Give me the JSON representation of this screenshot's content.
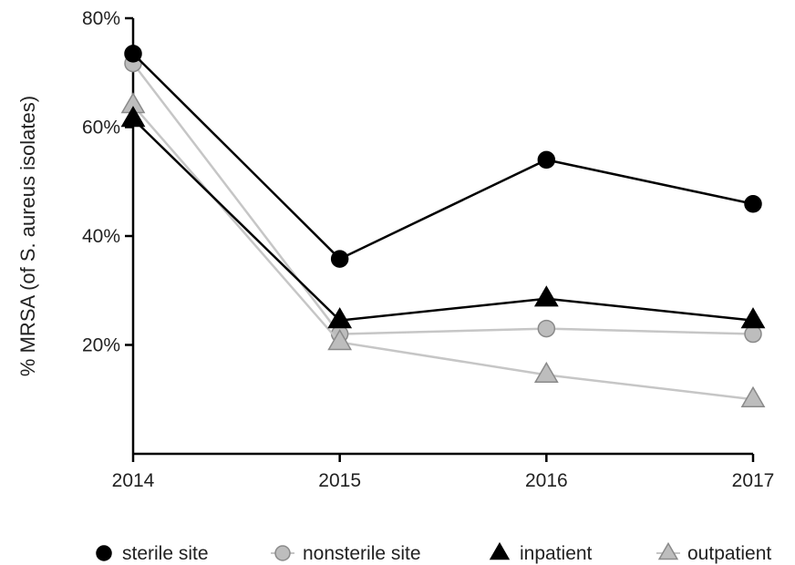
{
  "chart_data": {
    "type": "line",
    "x": [
      "2014",
      "2015",
      "2016",
      "2017"
    ],
    "ylabel": "% MRSA (of S. aureus isolates)",
    "ylim": [
      0,
      80
    ],
    "yticks": [
      20,
      40,
      60,
      80
    ],
    "ytick_labels": [
      "20%",
      "40%",
      "60%",
      "80%"
    ],
    "legend_position": "bottom",
    "grid": false,
    "series": [
      {
        "name": "sterile site",
        "marker": "circle",
        "color": "#000000",
        "line_color": "#000000",
        "values": [
          73.5,
          35.8,
          54.0,
          45.9
        ]
      },
      {
        "name": "nonsterile site",
        "marker": "circle",
        "color": "#bdbdbd",
        "line_color": "#c6c6c6",
        "values": [
          71.7,
          22.0,
          23.0,
          22.0
        ]
      },
      {
        "name": "inpatient",
        "marker": "triangle",
        "color": "#000000",
        "line_color": "#000000",
        "values": [
          61.5,
          24.5,
          28.5,
          24.5
        ]
      },
      {
        "name": "outpatient",
        "marker": "triangle",
        "color": "#bdbdbd",
        "line_color": "#c6c6c6",
        "values": [
          64.0,
          20.5,
          14.5,
          10.0
        ]
      }
    ]
  }
}
